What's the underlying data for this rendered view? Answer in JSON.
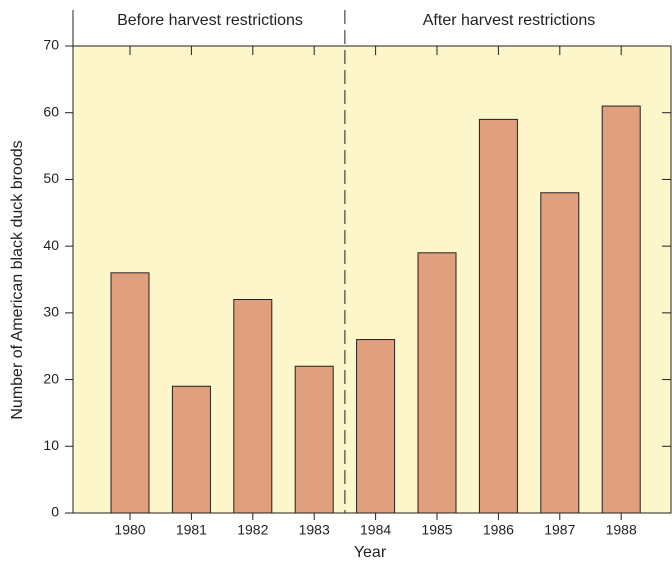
{
  "chart_data": {
    "type": "bar",
    "annotations": [
      "Before harvest restrictions",
      "After harvest restrictions"
    ],
    "x_label": "Year",
    "y_label": "Number of American black duck broods",
    "categories": [
      "1980",
      "1981",
      "1982",
      "1983",
      "1984",
      "1985",
      "1986",
      "1987",
      "1988"
    ],
    "values": [
      36,
      19,
      32,
      22,
      26,
      39,
      59,
      48,
      61
    ],
    "color": "#e0a07e",
    "background": "#fdf6cb",
    "ylim": [
      0,
      70
    ],
    "yticks": [
      0,
      10,
      20,
      30,
      40,
      50,
      60,
      70
    ]
  }
}
